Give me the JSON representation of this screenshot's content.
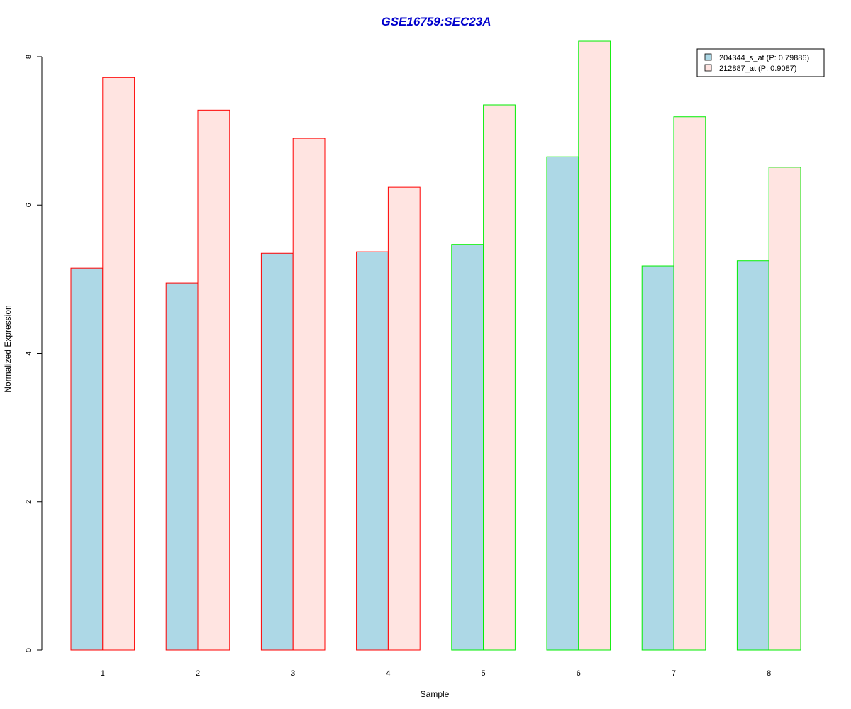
{
  "colors": {
    "title": "#0000cc",
    "series1_fill": "#add8e6",
    "series2_fill": "#ffe4e1",
    "group_red": "#ff0000",
    "group_green": "#00ee00",
    "axis": "#000000"
  },
  "chart_data": {
    "type": "bar",
    "title": "GSE16759:SEC23A",
    "xlabel": "Sample",
    "ylabel": "Normalized Expression",
    "ylim": [
      0,
      8.2
    ],
    "yticks": [
      0,
      2,
      4,
      6,
      8
    ],
    "grid": false,
    "legend_position": "top-right",
    "categories": [
      "1",
      "2",
      "3",
      "4",
      "5",
      "6",
      "7",
      "8"
    ],
    "bar_border_colors": [
      "red",
      "red",
      "red",
      "red",
      "green",
      "green",
      "green",
      "green"
    ],
    "series": [
      {
        "name": "204344_s_at (P: 0.79886)",
        "values": [
          5.15,
          4.95,
          5.35,
          5.37,
          5.47,
          6.65,
          5.18,
          5.25
        ]
      },
      {
        "name": "212887_at (P: 0.9087)",
        "values": [
          7.72,
          7.28,
          6.9,
          6.24,
          7.35,
          8.21,
          7.19,
          6.51
        ]
      }
    ]
  }
}
